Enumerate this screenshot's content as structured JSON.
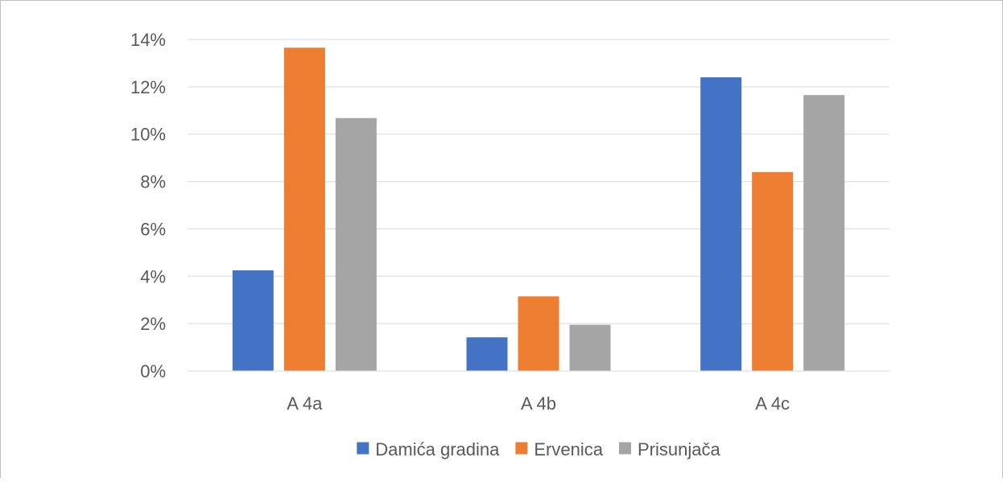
{
  "chart_data": {
    "type": "bar",
    "categories": [
      "A 4a",
      "A 4b",
      "A 4c"
    ],
    "series": [
      {
        "name": "Damića gradina",
        "color": "#4472C4",
        "values": [
          0.0425,
          0.0142,
          0.124
        ]
      },
      {
        "name": "Ervenica",
        "color": "#ED7D31",
        "values": [
          0.1365,
          0.0315,
          0.084
        ]
      },
      {
        "name": "Prisunjača",
        "color": "#A5A5A5",
        "values": [
          0.1068,
          0.0195,
          0.1165
        ]
      }
    ],
    "y_ticks": [
      "0%",
      "2%",
      "4%",
      "6%",
      "8%",
      "10%",
      "12%",
      "14%"
    ],
    "ylim": [
      0,
      0.14
    ],
    "grid": true,
    "legend_position": "bottom",
    "title": "",
    "xlabel": "",
    "ylabel": ""
  }
}
